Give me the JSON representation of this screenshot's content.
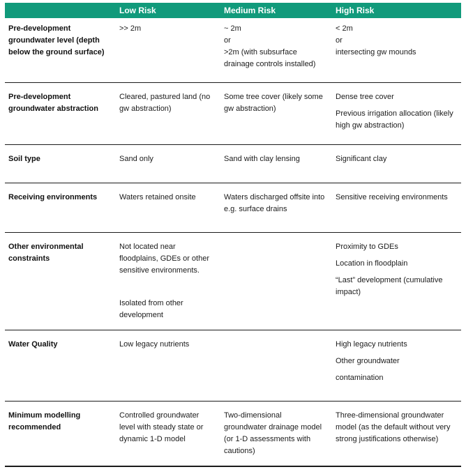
{
  "colors": {
    "header_bg": "#119a7b",
    "header_text": "#ffffff",
    "body_text": "#1b1b1b",
    "rule_line": "#1a1a1a"
  },
  "table": {
    "header": {
      "criterion": "",
      "low": "Low Risk",
      "medium": "Medium Risk",
      "high": "High Risk"
    },
    "rows": [
      {
        "criterion": "Pre-development groundwater level (depth below the ground surface)",
        "low": [
          ">> 2m"
        ],
        "medium": [
          "~ 2m\nor\n>2m  (with subsurface drainage controls installed)"
        ],
        "high": [
          "< 2m\nor\nintersecting gw mounds"
        ]
      },
      {
        "criterion": "Pre-development groundwater abstraction",
        "low": [
          "Cleared, pastured land (no gw abstraction)"
        ],
        "medium": [
          "Some tree cover (likely some gw abstraction)"
        ],
        "high": [
          "Dense tree cover",
          "Previous irrigation allocation (likely high gw abstraction)"
        ]
      },
      {
        "criterion": "Soil type",
        "low": [
          "Sand only"
        ],
        "medium": [
          "Sand with clay lensing"
        ],
        "high": [
          "Significant clay"
        ]
      },
      {
        "criterion": "Receiving environments",
        "low": [
          "Waters retained onsite"
        ],
        "medium": [
          "Waters discharged offsite into e.g. surface drains"
        ],
        "high": [
          "Sensitive receiving environments"
        ]
      },
      {
        "criterion": "Other environmental constraints",
        "low": [
          "Not located near floodplains, GDEs or other sensitive environments.",
          "",
          "Isolated from other development"
        ],
        "medium": [],
        "high": [
          "Proximity to GDEs",
          "Location in floodplain",
          "“Last” development (cumulative impact)"
        ]
      },
      {
        "criterion": "Water Quality",
        "low": [
          "Low legacy nutrients"
        ],
        "medium": [],
        "high": [
          "High legacy nutrients",
          "Other groundwater",
          "contamination"
        ]
      },
      {
        "criterion": "Minimum modelling recommended",
        "low": [
          "Controlled groundwater level with steady state or dynamic 1-D model"
        ],
        "medium": [
          "Two-dimensional groundwater drainage model (or 1-D assessments with cautions)"
        ],
        "high": [
          "Three-dimensional groundwater model (as the default without very strong justifications otherwise)"
        ]
      }
    ]
  }
}
